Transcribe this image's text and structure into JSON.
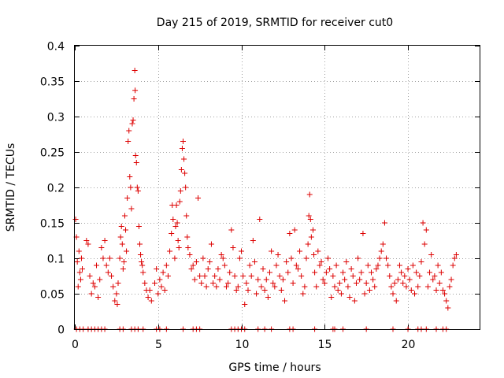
{
  "chart_data": {
    "type": "scatter",
    "title": "Day 215 of 2019, SRMTID for receiver cut0",
    "xlabel": "GPS time / hours",
    "ylabel": "SRMTID / TECUs",
    "xlim": [
      0,
      24.3
    ],
    "ylim": [
      0,
      0.4
    ],
    "xticks": [
      0,
      5,
      10,
      15,
      20
    ],
    "xtick_labels": [
      "0",
      "5",
      "10",
      "15",
      "20"
    ],
    "yticks": [
      0,
      0.05,
      0.1,
      0.15,
      0.2,
      0.25,
      0.3,
      0.35,
      0.4
    ],
    "ytick_labels": [
      "0",
      "0.05",
      "0.1",
      "0.15",
      "0.2",
      "0.25",
      "0.3",
      "0.35",
      "0.4"
    ],
    "grid": true,
    "marker": "plus",
    "series": [
      {
        "name": "SRMTID",
        "color": "#dd0000",
        "points": [
          [
            0.05,
            0.155
          ],
          [
            0.1,
            0.13
          ],
          [
            0.15,
            0.095
          ],
          [
            0.2,
            0.06
          ],
          [
            0.25,
            0.11
          ],
          [
            0.3,
            0.08
          ],
          [
            0.35,
            0.07
          ],
          [
            0.4,
            0.1
          ],
          [
            0.45,
            0.085
          ],
          [
            0.7,
            0.125
          ],
          [
            0.8,
            0.12
          ],
          [
            0.9,
            0.075
          ],
          [
            1.0,
            0.05
          ],
          [
            1.1,
            0.065
          ],
          [
            1.2,
            0.06
          ],
          [
            1.3,
            0.09
          ],
          [
            1.4,
            0.045
          ],
          [
            1.5,
            0.07
          ],
          [
            1.6,
            0.115
          ],
          [
            1.7,
            0.1
          ],
          [
            1.8,
            0.125
          ],
          [
            1.9,
            0.09
          ],
          [
            2.0,
            0.08
          ],
          [
            2.1,
            0.1
          ],
          [
            2.2,
            0.075
          ],
          [
            2.3,
            0.06
          ],
          [
            2.4,
            0.04
          ],
          [
            2.5,
            0.05
          ],
          [
            2.55,
            0.035
          ],
          [
            2.6,
            0.065
          ],
          [
            2.7,
            0.1
          ],
          [
            2.75,
            0.13
          ],
          [
            2.8,
            0.145
          ],
          [
            2.85,
            0.12
          ],
          [
            2.9,
            0.085
          ],
          [
            2.95,
            0.095
          ],
          [
            3.0,
            0.16
          ],
          [
            3.05,
            0.14
          ],
          [
            3.1,
            0.11
          ],
          [
            3.15,
            0.185
          ],
          [
            3.2,
            0.265
          ],
          [
            3.25,
            0.28
          ],
          [
            3.3,
            0.215
          ],
          [
            3.35,
            0.2
          ],
          [
            3.4,
            0.17
          ],
          [
            3.45,
            0.29
          ],
          [
            3.5,
            0.295
          ],
          [
            3.55,
            0.325
          ],
          [
            3.6,
            0.365
          ],
          [
            3.62,
            0.337
          ],
          [
            3.65,
            0.245
          ],
          [
            3.7,
            0.235
          ],
          [
            3.75,
            0.2
          ],
          [
            3.8,
            0.195
          ],
          [
            3.85,
            0.145
          ],
          [
            3.9,
            0.12
          ],
          [
            3.95,
            0.105
          ],
          [
            4.0,
            0.095
          ],
          [
            4.05,
            0.09
          ],
          [
            4.1,
            0.08
          ],
          [
            4.2,
            0.065
          ],
          [
            4.3,
            0.055
          ],
          [
            4.4,
            0.045
          ],
          [
            4.5,
            0.055
          ],
          [
            4.6,
            0.04
          ],
          [
            4.8,
            0.065
          ],
          [
            4.9,
            0.085
          ],
          [
            5.0,
            0.05
          ],
          [
            5.1,
            0.07
          ],
          [
            5.2,
            0.06
          ],
          [
            5.3,
            0.08
          ],
          [
            5.4,
            0.055
          ],
          [
            5.5,
            0.09
          ],
          [
            5.6,
            0.075
          ],
          [
            5.7,
            0.11
          ],
          [
            5.8,
            0.135
          ],
          [
            5.85,
            0.175
          ],
          [
            5.9,
            0.155
          ],
          [
            6.0,
            0.1
          ],
          [
            6.05,
            0.145
          ],
          [
            6.1,
            0.175
          ],
          [
            6.15,
            0.15
          ],
          [
            6.2,
            0.125
          ],
          [
            6.25,
            0.115
          ],
          [
            6.3,
            0.18
          ],
          [
            6.35,
            0.195
          ],
          [
            6.4,
            0.225
          ],
          [
            6.45,
            0.255
          ],
          [
            6.5,
            0.265
          ],
          [
            6.55,
            0.24
          ],
          [
            6.6,
            0.22
          ],
          [
            6.65,
            0.2
          ],
          [
            6.7,
            0.16
          ],
          [
            6.75,
            0.13
          ],
          [
            6.8,
            0.115
          ],
          [
            6.9,
            0.105
          ],
          [
            7.0,
            0.085
          ],
          [
            7.1,
            0.09
          ],
          [
            7.2,
            0.07
          ],
          [
            7.3,
            0.095
          ],
          [
            7.4,
            0.185
          ],
          [
            7.5,
            0.075
          ],
          [
            7.6,
            0.065
          ],
          [
            7.7,
            0.1
          ],
          [
            7.8,
            0.075
          ],
          [
            7.9,
            0.06
          ],
          [
            8.0,
            0.085
          ],
          [
            8.1,
            0.095
          ],
          [
            8.2,
            0.12
          ],
          [
            8.3,
            0.065
          ],
          [
            8.4,
            0.075
          ],
          [
            8.5,
            0.06
          ],
          [
            8.6,
            0.085
          ],
          [
            8.7,
            0.07
          ],
          [
            8.8,
            0.105
          ],
          [
            8.9,
            0.1
          ],
          [
            9.0,
            0.09
          ],
          [
            9.1,
            0.06
          ],
          [
            9.2,
            0.065
          ],
          [
            9.3,
            0.08
          ],
          [
            9.4,
            0.14
          ],
          [
            9.5,
            0.115
          ],
          [
            9.6,
            0.075
          ],
          [
            9.7,
            0.055
          ],
          [
            9.8,
            0.06
          ],
          [
            9.9,
            0.1
          ],
          [
            10.0,
            0.11
          ],
          [
            10.1,
            0.075
          ],
          [
            10.2,
            0.035
          ],
          [
            10.3,
            0.065
          ],
          [
            10.4,
            0.055
          ],
          [
            10.5,
            0.09
          ],
          [
            10.6,
            0.075
          ],
          [
            10.7,
            0.125
          ],
          [
            10.8,
            0.095
          ],
          [
            10.9,
            0.05
          ],
          [
            11.0,
            0.07
          ],
          [
            11.1,
            0.155
          ],
          [
            11.2,
            0.06
          ],
          [
            11.3,
            0.085
          ],
          [
            11.4,
            0.055
          ],
          [
            11.5,
            0.07
          ],
          [
            11.6,
            0.045
          ],
          [
            11.7,
            0.08
          ],
          [
            11.8,
            0.11
          ],
          [
            11.9,
            0.065
          ],
          [
            12.0,
            0.06
          ],
          [
            12.1,
            0.09
          ],
          [
            12.2,
            0.105
          ],
          [
            12.3,
            0.075
          ],
          [
            12.4,
            0.055
          ],
          [
            12.5,
            0.07
          ],
          [
            12.6,
            0.04
          ],
          [
            12.7,
            0.095
          ],
          [
            12.8,
            0.08
          ],
          [
            12.9,
            0.135
          ],
          [
            13.0,
            0.1
          ],
          [
            13.1,
            0.065
          ],
          [
            13.2,
            0.14
          ],
          [
            13.3,
            0.09
          ],
          [
            13.4,
            0.085
          ],
          [
            13.5,
            0.11
          ],
          [
            13.6,
            0.075
          ],
          [
            13.7,
            0.05
          ],
          [
            13.8,
            0.06
          ],
          [
            13.9,
            0.1
          ],
          [
            14.0,
            0.12
          ],
          [
            14.05,
            0.16
          ],
          [
            14.1,
            0.19
          ],
          [
            14.15,
            0.155
          ],
          [
            14.2,
            0.13
          ],
          [
            14.3,
            0.14
          ],
          [
            14.35,
            0.105
          ],
          [
            14.4,
            0.08
          ],
          [
            14.5,
            0.06
          ],
          [
            14.6,
            0.11
          ],
          [
            14.7,
            0.09
          ],
          [
            14.8,
            0.095
          ],
          [
            14.9,
            0.07
          ],
          [
            15.0,
            0.065
          ],
          [
            15.1,
            0.08
          ],
          [
            15.2,
            0.1
          ],
          [
            15.3,
            0.085
          ],
          [
            15.4,
            0.045
          ],
          [
            15.5,
            0.075
          ],
          [
            15.6,
            0.06
          ],
          [
            15.7,
            0.09
          ],
          [
            15.8,
            0.055
          ],
          [
            15.9,
            0.065
          ],
          [
            16.0,
            0.05
          ],
          [
            16.1,
            0.08
          ],
          [
            16.2,
            0.07
          ],
          [
            16.3,
            0.095
          ],
          [
            16.4,
            0.06
          ],
          [
            16.5,
            0.045
          ],
          [
            16.6,
            0.085
          ],
          [
            16.7,
            0.075
          ],
          [
            16.8,
            0.04
          ],
          [
            16.9,
            0.065
          ],
          [
            17.0,
            0.1
          ],
          [
            17.1,
            0.07
          ],
          [
            17.2,
            0.08
          ],
          [
            17.3,
            0.135
          ],
          [
            17.4,
            0.05
          ],
          [
            17.5,
            0.065
          ],
          [
            17.6,
            0.09
          ],
          [
            17.7,
            0.055
          ],
          [
            17.8,
            0.08
          ],
          [
            17.9,
            0.07
          ],
          [
            18.0,
            0.06
          ],
          [
            18.1,
            0.085
          ],
          [
            18.2,
            0.09
          ],
          [
            18.3,
            0.1
          ],
          [
            18.4,
            0.11
          ],
          [
            18.5,
            0.12
          ],
          [
            18.6,
            0.15
          ],
          [
            18.7,
            0.1
          ],
          [
            18.8,
            0.09
          ],
          [
            18.9,
            0.075
          ],
          [
            19.0,
            0.06
          ],
          [
            19.1,
            0.05
          ],
          [
            19.2,
            0.065
          ],
          [
            19.3,
            0.04
          ],
          [
            19.4,
            0.07
          ],
          [
            19.5,
            0.09
          ],
          [
            19.6,
            0.08
          ],
          [
            19.7,
            0.065
          ],
          [
            19.8,
            0.075
          ],
          [
            19.9,
            0.06
          ],
          [
            20.0,
            0.085
          ],
          [
            20.1,
            0.07
          ],
          [
            20.2,
            0.055
          ],
          [
            20.3,
            0.09
          ],
          [
            20.4,
            0.05
          ],
          [
            20.5,
            0.08
          ],
          [
            20.6,
            0.06
          ],
          [
            20.7,
            0.075
          ],
          [
            20.8,
            0.095
          ],
          [
            20.9,
            0.15
          ],
          [
            21.0,
            0.12
          ],
          [
            21.1,
            0.14
          ],
          [
            21.2,
            0.06
          ],
          [
            21.3,
            0.08
          ],
          [
            21.4,
            0.105
          ],
          [
            21.5,
            0.07
          ],
          [
            21.6,
            0.075
          ],
          [
            21.7,
            0.055
          ],
          [
            21.8,
            0.09
          ],
          [
            21.9,
            0.065
          ],
          [
            22.0,
            0.08
          ],
          [
            22.1,
            0.055
          ],
          [
            22.2,
            0.05
          ],
          [
            22.3,
            0.04
          ],
          [
            22.4,
            0.03
          ],
          [
            22.5,
            0.06
          ],
          [
            22.6,
            0.07
          ],
          [
            22.7,
            0.09
          ],
          [
            22.8,
            0.1
          ],
          [
            22.9,
            0.105
          ],
          [
            0.1,
            0.0
          ],
          [
            0.3,
            0.0
          ],
          [
            0.5,
            0.0
          ],
          [
            0.8,
            0.0
          ],
          [
            1.0,
            0.0
          ],
          [
            1.2,
            0.0
          ],
          [
            1.4,
            0.0
          ],
          [
            1.6,
            0.0
          ],
          [
            1.8,
            0.0
          ],
          [
            2.7,
            0.0
          ],
          [
            2.9,
            0.0
          ],
          [
            3.4,
            0.0
          ],
          [
            3.6,
            0.0
          ],
          [
            3.8,
            0.0
          ],
          [
            4.1,
            0.0
          ],
          [
            4.9,
            0.0
          ],
          [
            5.1,
            0.0
          ],
          [
            5.5,
            0.0
          ],
          [
            6.5,
            0.0
          ],
          [
            7.1,
            0.0
          ],
          [
            7.3,
            0.0
          ],
          [
            7.5,
            0.0
          ],
          [
            9.4,
            0.0
          ],
          [
            9.6,
            0.0
          ],
          [
            9.8,
            0.0
          ],
          [
            10.0,
            0.0
          ],
          [
            10.2,
            0.0
          ],
          [
            11.0,
            0.0
          ],
          [
            11.4,
            0.0
          ],
          [
            11.8,
            0.0
          ],
          [
            12.9,
            0.0
          ],
          [
            13.1,
            0.0
          ],
          [
            14.4,
            0.0
          ],
          [
            15.5,
            0.0
          ],
          [
            15.6,
            0.0
          ],
          [
            16.1,
            0.0
          ],
          [
            17.5,
            0.0
          ],
          [
            19.1,
            0.0
          ],
          [
            20.0,
            0.0
          ],
          [
            20.6,
            0.0
          ],
          [
            20.8,
            0.0
          ],
          [
            21.1,
            0.0
          ],
          [
            21.7,
            0.0
          ],
          [
            22.1,
            0.0
          ],
          [
            22.3,
            0.0
          ]
        ]
      }
    ]
  }
}
